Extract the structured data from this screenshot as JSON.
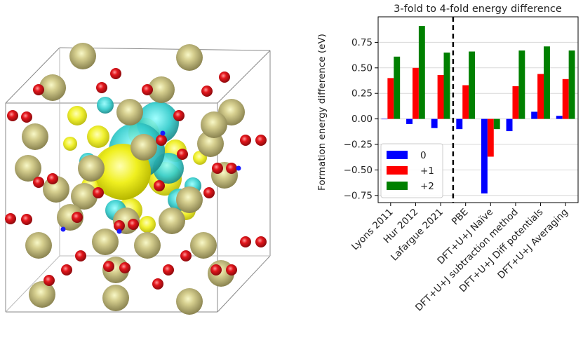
{
  "structure_image": {
    "atom_colors": {
      "large": "#a9a16a",
      "large_highlight": "#f4f4a0",
      "small": "#e3161c",
      "small_highlight": "#ff8080",
      "tiny": "#1a1aff"
    },
    "isosurface_colors": {
      "positive": "#f0f020",
      "negative": "#33cccc"
    }
  },
  "chart_data": {
    "type": "bar",
    "title": "3-fold to 4-fold energy difference",
    "ylabel": "Formation energy difference (eV)",
    "xlabel": "",
    "categories": [
      "Lyons 2011",
      "Hur 2012",
      "Lafargue 2021",
      "PBE",
      "DFT+U+J Naïve",
      "DFT+U+J subtraction method",
      "DFT+U+J Diff potentials",
      "DFT+U+J Averaging"
    ],
    "series": [
      {
        "name": "0",
        "color": "#0000ff",
        "values": [
          0.0,
          -0.05,
          -0.09,
          -0.1,
          -0.73,
          -0.12,
          0.07,
          0.03
        ]
      },
      {
        "name": "+1",
        "color": "#ff0000",
        "values": [
          0.4,
          0.5,
          0.43,
          0.33,
          -0.37,
          0.32,
          0.44,
          0.39
        ]
      },
      {
        "name": "+2",
        "color": "#008000",
        "values": [
          0.61,
          0.91,
          0.65,
          0.66,
          -0.1,
          0.67,
          0.71,
          0.67
        ]
      }
    ],
    "yticks": [
      "0.75",
      "0.50",
      "0.25",
      "0.00",
      "−0.25",
      "−0.50",
      "−0.75"
    ],
    "ytick_values": [
      0.75,
      0.5,
      0.25,
      0.0,
      -0.25,
      -0.5,
      -0.75
    ],
    "ylim": [
      -0.82,
      1.0
    ],
    "grid": "y",
    "legend_position": "lower-left",
    "divider_after_index": 2
  }
}
